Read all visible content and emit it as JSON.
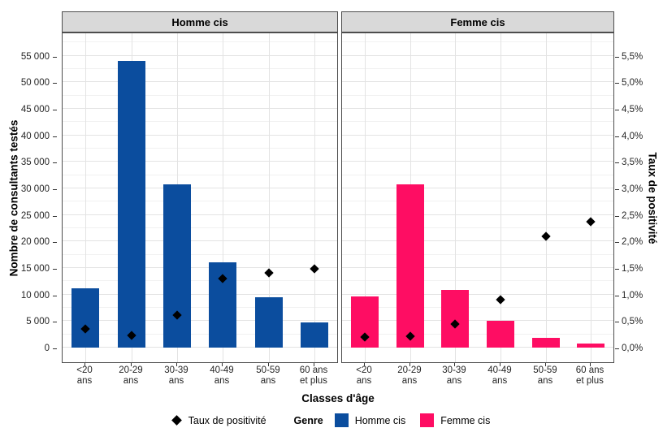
{
  "chart_data": {
    "type": "bar",
    "title": "",
    "facet_variable": "Genre",
    "categories": [
      "<20 ans",
      "20-29 ans",
      "30-39 ans",
      "40-49 ans",
      "50-59 ans",
      "60 ans et plus"
    ],
    "categories_lines": [
      [
        "<20",
        "ans"
      ],
      [
        "20-29",
        "ans"
      ],
      [
        "30-39",
        "ans"
      ],
      [
        "40-49",
        "ans"
      ],
      [
        "50-59",
        "ans"
      ],
      [
        "60 ans",
        "et plus"
      ]
    ],
    "facets": [
      {
        "label": "Homme cis",
        "color": "#0b4d9e",
        "tested_counts": [
          11100,
          54000,
          30800,
          16100,
          9500,
          4700
        ],
        "positivity_rate_pct": [
          0.35,
          0.23,
          0.62,
          1.3,
          1.41,
          1.48
        ]
      },
      {
        "label": "Femme cis",
        "color": "#fe0d63",
        "tested_counts": [
          9600,
          30800,
          10800,
          5100,
          1900,
          700
        ],
        "positivity_rate_pct": [
          0.2,
          0.22,
          0.44,
          0.9,
          2.1,
          2.38
        ]
      }
    ],
    "left_axis": {
      "label": "Nombre de consultants testés",
      "tick_step": 5000,
      "max": 55000,
      "tick_labels_top_down": [
        "55 000",
        "50 000",
        "45 000",
        "40 000",
        "35 000",
        "30 000",
        "25 000",
        "20 000",
        "15 000",
        "10 000",
        "5 000",
        "0"
      ]
    },
    "right_axis": {
      "label": "Taux de positivité",
      "tick_step_pct": 0.5,
      "max_pct": 5.5,
      "tick_labels_top_down": [
        "5,5%",
        "5,0%",
        "4,5%",
        "4,0%",
        "3,5%",
        "3,0%",
        "2,5%",
        "2,0%",
        "1,5%",
        "1,0%",
        "0,5%",
        "0,0%"
      ]
    },
    "xlabel": "Classes d'âge",
    "legend": {
      "point_label": "Taux de positivité",
      "genre_label": "Genre",
      "series_labels": [
        "Homme cis",
        "Femme cis"
      ]
    },
    "layout": {
      "grid": true,
      "legend_position": "bottom",
      "colors": {
        "strip_bg": "#d9d9d9",
        "panel_border": "#4d4d4d",
        "grid_major": "#e3e3e3",
        "grid_minor": "#f1f1f1",
        "diamond": "#000000"
      }
    }
  }
}
